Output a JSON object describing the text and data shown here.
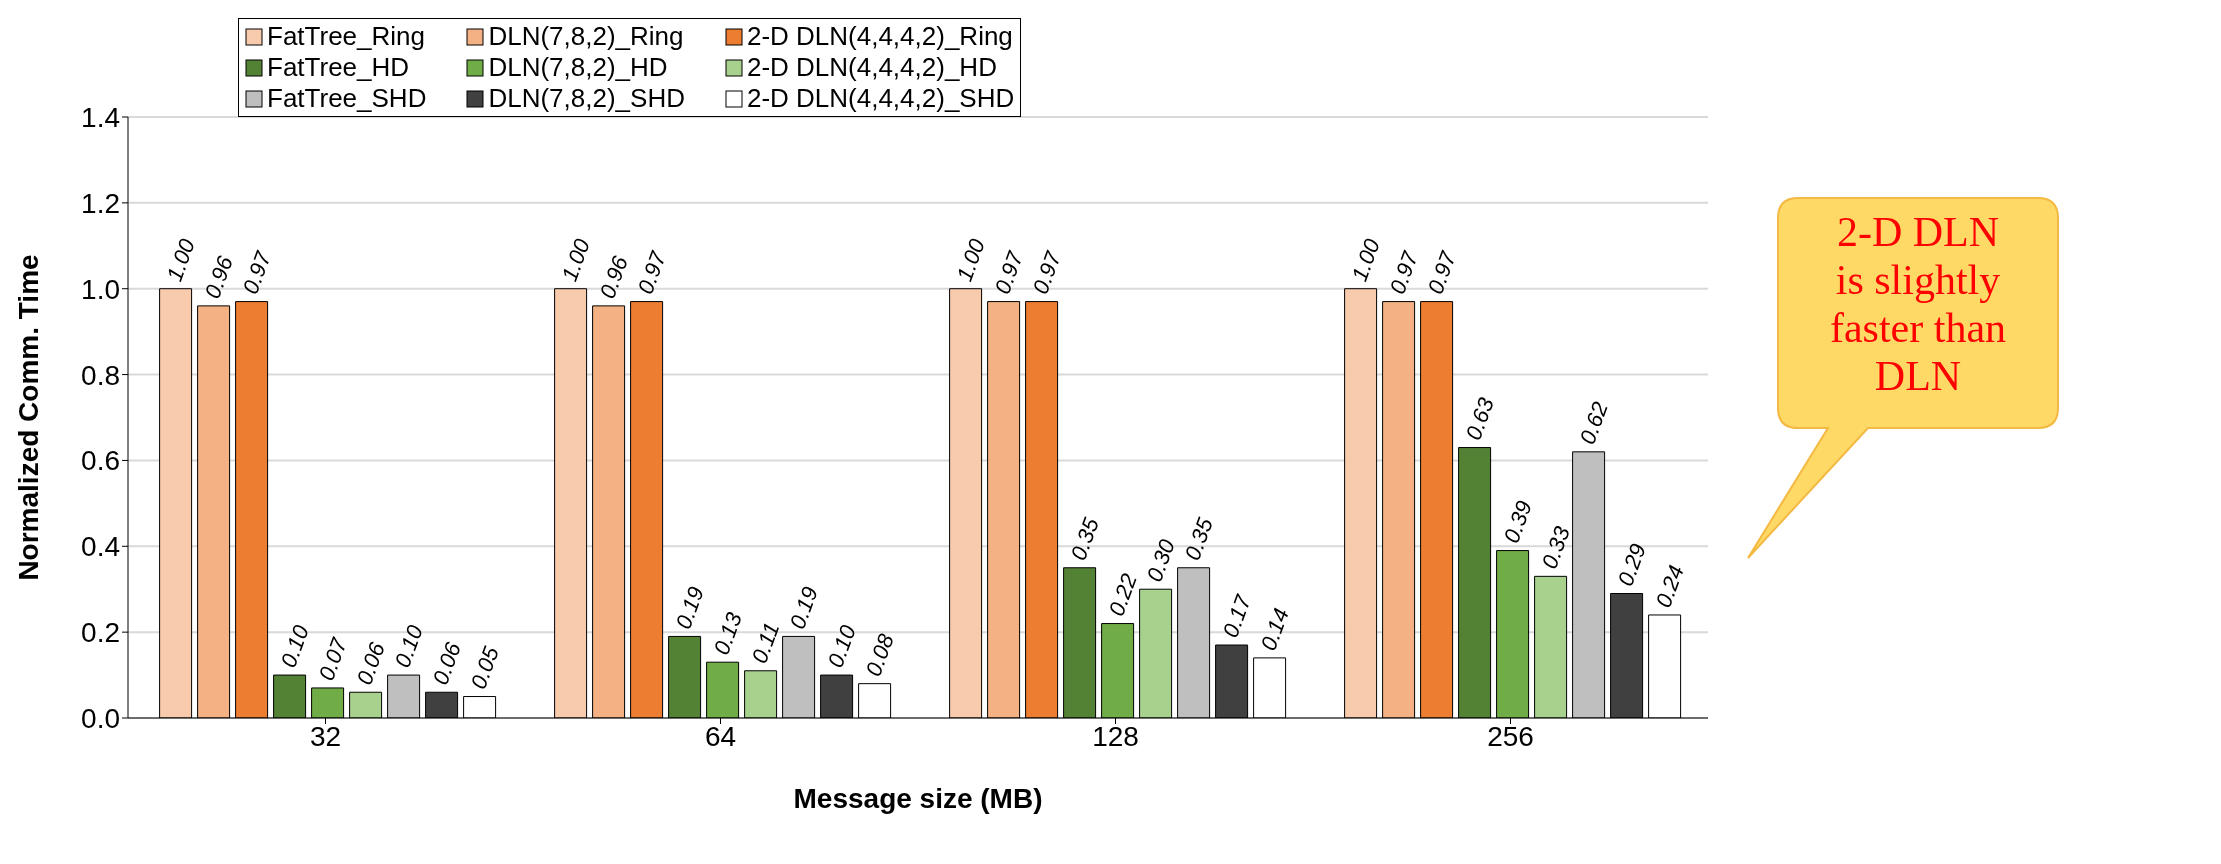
{
  "chart_data": {
    "type": "bar",
    "xlabel": "Message size (MB)",
    "ylabel": "Normalized  Comm. Time",
    "categories": [
      "32",
      "64",
      "128",
      "256"
    ],
    "series": [
      {
        "name": "FatTree_Ring",
        "color": "#f8cbad",
        "values": [
          1.0,
          1.0,
          1.0,
          1.0
        ],
        "value_labels": [
          "1.00",
          "1.00",
          "1.00",
          "1.00"
        ]
      },
      {
        "name": "DLN(7,8,2)_Ring",
        "color": "#f4b183",
        "values": [
          0.96,
          0.96,
          0.97,
          0.97
        ],
        "value_labels": [
          "0.96",
          "0.96",
          "0.97",
          "0.97"
        ]
      },
      {
        "name": "2-D DLN(4,4,4,2)_Ring",
        "color": "#ed7d31",
        "values": [
          0.97,
          0.97,
          0.97,
          0.97
        ],
        "value_labels": [
          "0.97",
          "0.97",
          "0.97",
          "0.97"
        ]
      },
      {
        "name": "FatTree_HD",
        "color": "#548235",
        "values": [
          0.1,
          0.19,
          0.35,
          0.63
        ],
        "value_labels": [
          "0.10",
          "0.19",
          "0.35",
          "0.63"
        ]
      },
      {
        "name": "DLN(7,8,2)_HD",
        "color": "#70ad47",
        "values": [
          0.07,
          0.13,
          0.22,
          0.39
        ],
        "value_labels": [
          "0.07",
          "0.13",
          "0.22",
          "0.39"
        ]
      },
      {
        "name": "2-D DLN(4,4,4,2)_HD",
        "color": "#a9d18e",
        "values": [
          0.06,
          0.11,
          0.3,
          0.33
        ],
        "value_labels": [
          "0.06",
          "0.11",
          "0.30",
          "0.33"
        ]
      },
      {
        "name": "FatTree_SHD",
        "color": "#bfbfbf",
        "values": [
          0.1,
          0.19,
          0.35,
          0.62
        ],
        "value_labels": [
          "0.10",
          "0.19",
          "0.35",
          "0.62"
        ]
      },
      {
        "name": "DLN(7,8,2)_SHD",
        "color": "#404040",
        "values": [
          0.06,
          0.1,
          0.17,
          0.29
        ],
        "value_labels": [
          "0.06",
          "0.10",
          "0.17",
          "0.29"
        ]
      },
      {
        "name": "2-D DLN(4,4,4,2)_SHD",
        "color": "#ffffff",
        "values": [
          0.05,
          0.08,
          0.14,
          0.24
        ],
        "value_labels": [
          "0.05",
          "0.08",
          "0.14",
          "0.24"
        ]
      }
    ],
    "ylim": [
      0,
      1.4
    ],
    "yticks": [
      {
        "value": 0,
        "label": "0.0"
      },
      {
        "value": 0.2,
        "label": "0.2"
      },
      {
        "value": 0.4,
        "label": "0.4"
      },
      {
        "value": 0.6,
        "label": "0.6"
      },
      {
        "value": 0.8,
        "label": "0.8"
      },
      {
        "value": 1.0,
        "label": "1.0"
      },
      {
        "value": 1.2,
        "label": "1.2"
      },
      {
        "value": 1.4,
        "label": "1.4"
      }
    ],
    "grid": "y",
    "legend": "top",
    "annotations": [
      "2-D DLN is slightly faster than DLN"
    ]
  }
}
